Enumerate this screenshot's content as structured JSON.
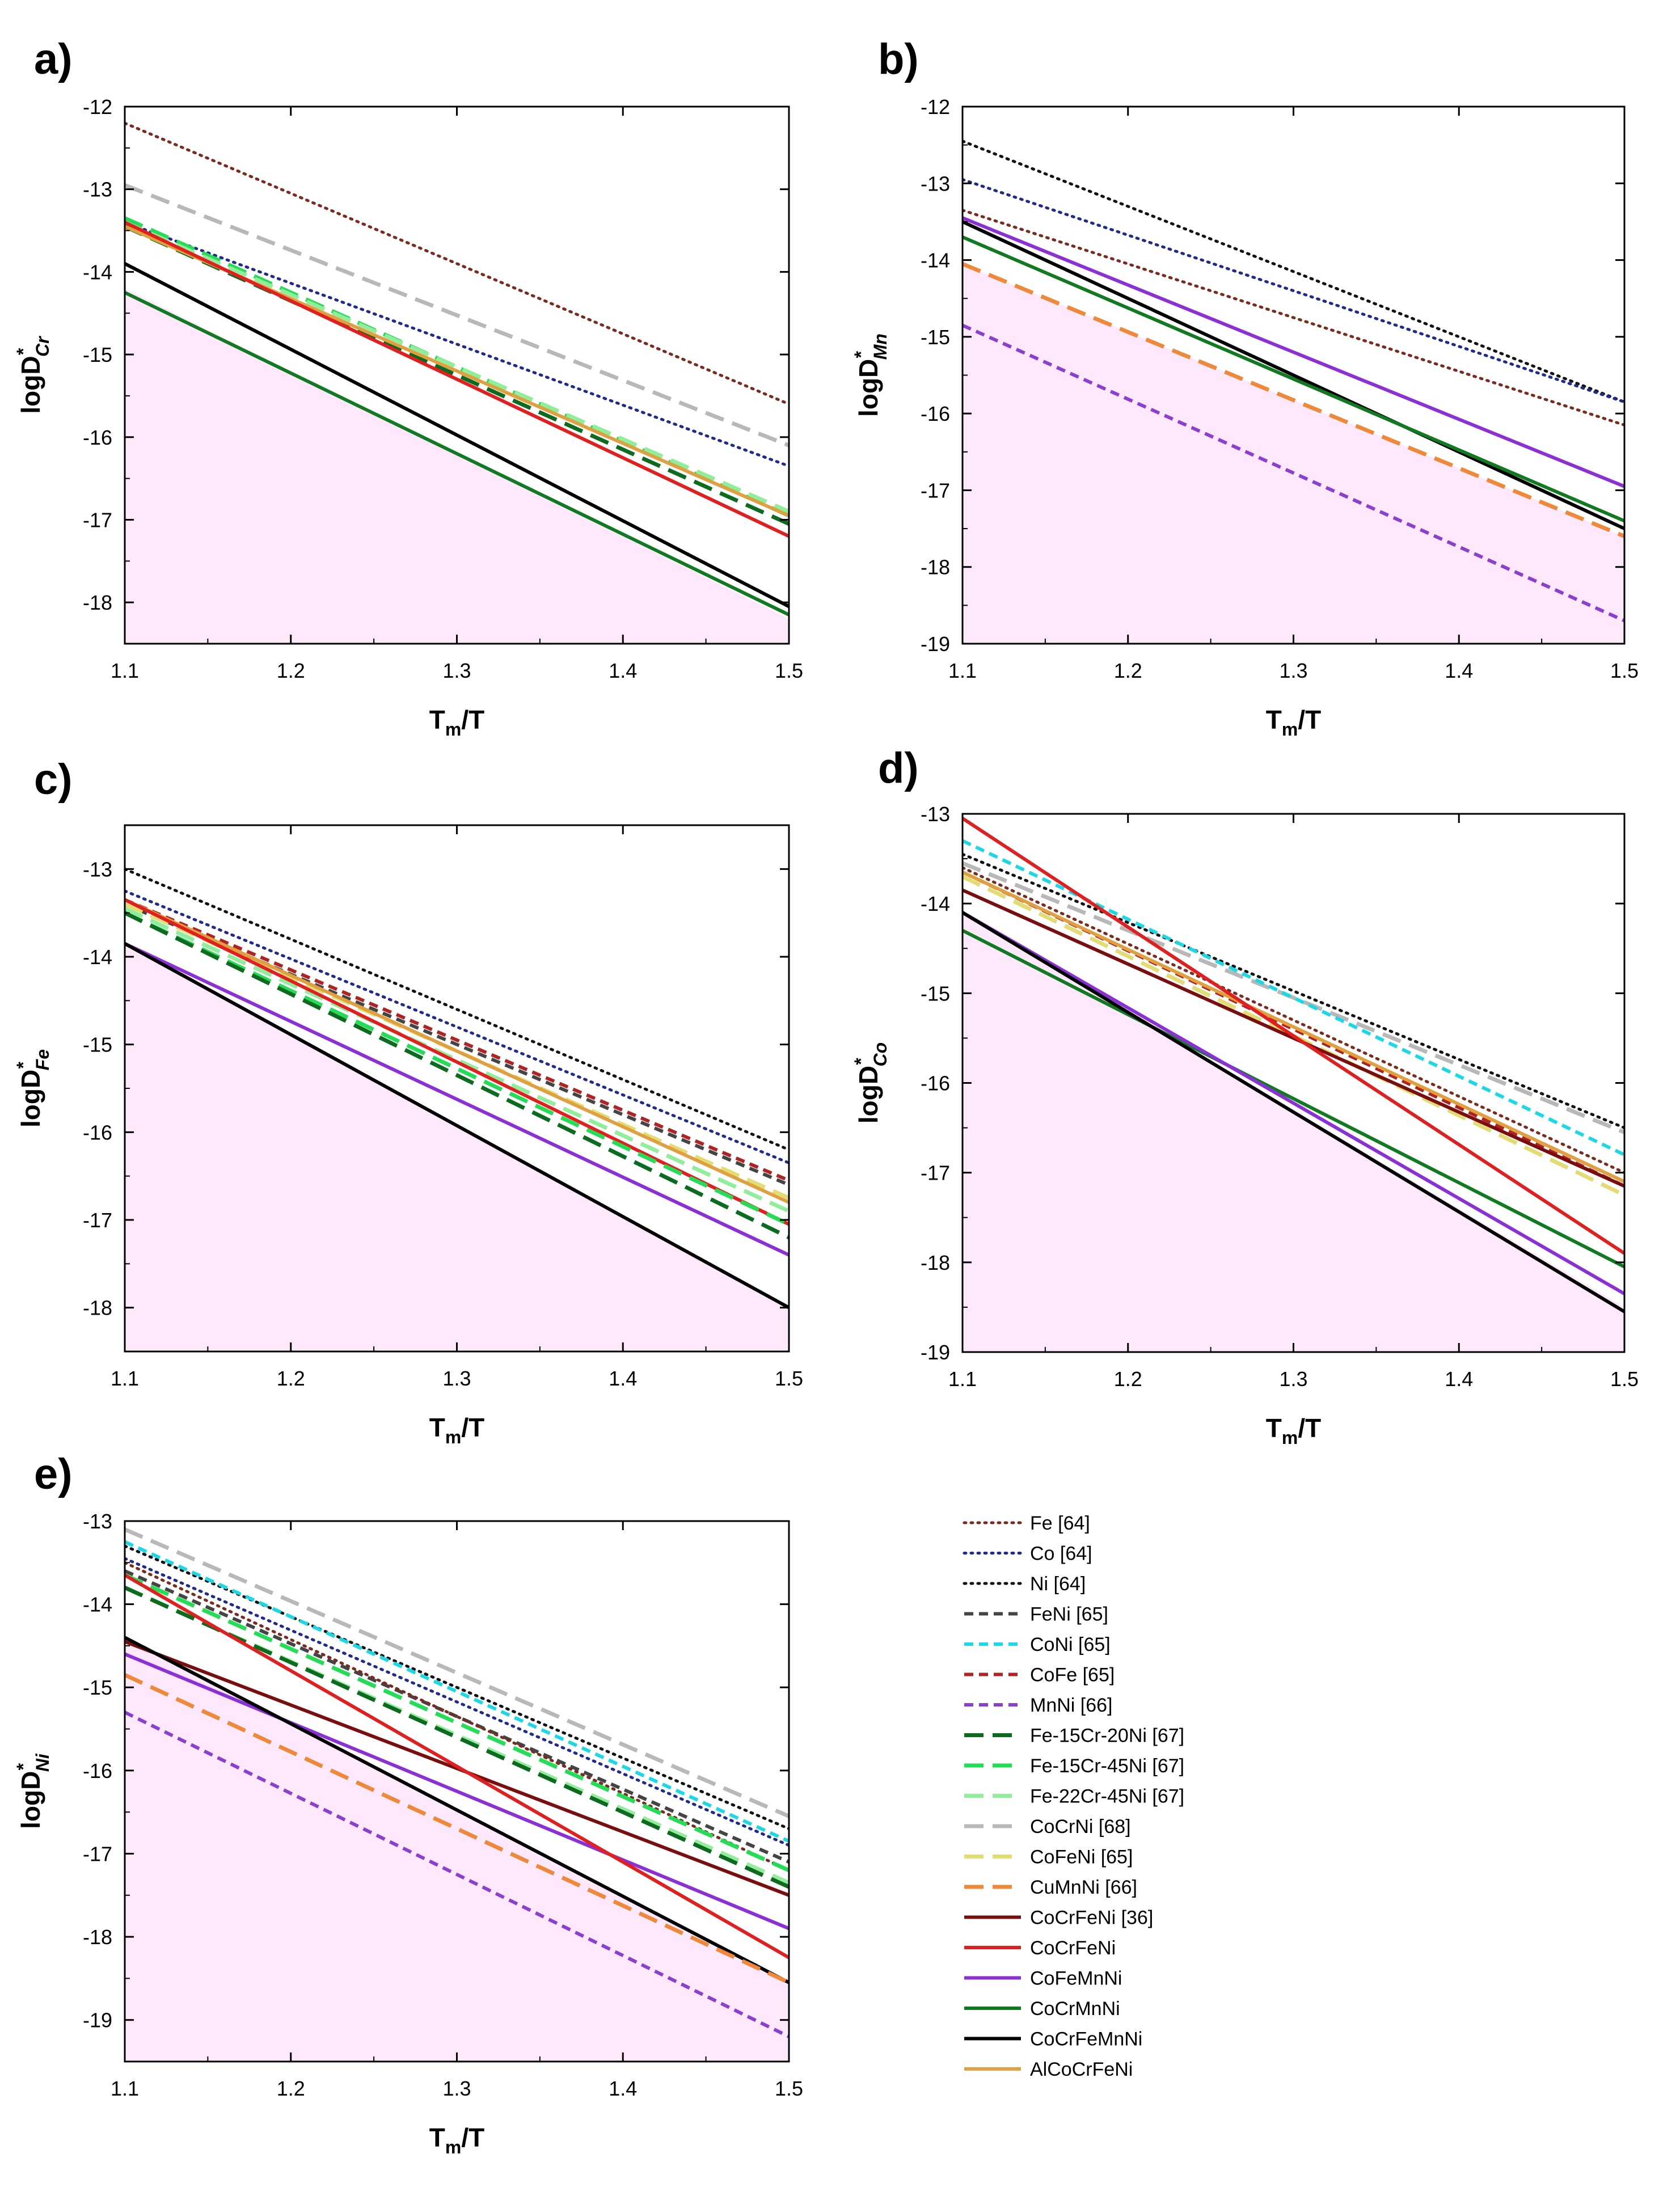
{
  "styles": {
    "Fe [64]": {
      "color": "#7b2b1e",
      "dash": "dot"
    },
    "Co [64]": {
      "color": "#1f2a8c",
      "dash": "dot"
    },
    "Ni [64]": {
      "color": "#111111",
      "dash": "dot"
    },
    "FeNi [65]": {
      "color": "#444444",
      "dash": "dash"
    },
    "CoNi [65]": {
      "color": "#1ad9e6",
      "dash": "dash"
    },
    "CoFe [65]": {
      "color": "#b22222",
      "dash": "dash"
    },
    "MnNi [66]": {
      "color": "#8a3fd0",
      "dash": "dash"
    },
    "Fe-15Cr-20Ni [67]": {
      "color": "#0b6b1e",
      "dash": "longdash"
    },
    "Fe-15Cr-45Ni [67]": {
      "color": "#22dd55",
      "dash": "longdash"
    },
    "Fe-22Cr-45Ni [67]": {
      "color": "#90ee9a",
      "dash": "longdash"
    },
    "CoCrNi [68]": {
      "color": "#b8b8b8",
      "dash": "longdash"
    },
    "CoFeNi [65]": {
      "color": "#e3dc72",
      "dash": "longdash"
    },
    "CuMnNi [66]": {
      "color": "#f0883a",
      "dash": "longdash"
    },
    "CoCrFeNi [36]": {
      "color": "#7a0e0e",
      "dash": "solid"
    },
    "CoCrFeNi": {
      "color": "#e21f1f",
      "dash": "solid"
    },
    "CoFeMnNi": {
      "color": "#8b2fd6",
      "dash": "solid"
    },
    "CoCrMnNi": {
      "color": "#0f7a1f",
      "dash": "solid"
    },
    "CoCrFeMnNi": {
      "color": "#000000",
      "dash": "solid"
    },
    "AlCoCrFeNi": {
      "color": "#e0a040",
      "dash": "solid"
    }
  },
  "shade_color": "#fde9fb",
  "legend": {
    "entries": [
      "Fe [64]",
      "Co [64]",
      "Ni [64]",
      "FeNi [65]",
      "CoNi [65]",
      "CoFe [65]",
      "MnNi [66]",
      "Fe-15Cr-20Ni [67]",
      "Fe-15Cr-45Ni [67]",
      "Fe-22Cr-45Ni [67]",
      "CoCrNi [68]",
      "CoFeNi [65]",
      "CuMnNi [66]",
      "CoCrFeNi [36]",
      "CoCrFeNi",
      "CoFeMnNi",
      "CoCrMnNi",
      "CoCrFeMnNi",
      "AlCoCrFeNi"
    ]
  },
  "chart_data": [
    {
      "panel_label": "a)",
      "type": "line",
      "xlabel": {
        "main": "T",
        "sub": "m",
        "rest": "/T"
      },
      "ylabel": {
        "main": "logD",
        "sup": "*",
        "sub": "Cr"
      },
      "xlim": [
        1.1,
        1.5
      ],
      "ylim": [
        -18.5,
        -12
      ],
      "xticks": [
        "1.1",
        "1.2",
        "1.3",
        "1.4",
        "1.5"
      ],
      "yticks": [
        "-18",
        "-17",
        "-16",
        "-15",
        "-14",
        "-13",
        "-12"
      ],
      "shaded_region": {
        "x": [
          1.1,
          1.5
        ],
        "y_top": [
          -14.2,
          -18.2
        ]
      },
      "series": [
        {
          "name": "Fe [64]",
          "x": [
            1.1,
            1.5
          ],
          "y": [
            -12.2,
            -15.6
          ]
        },
        {
          "name": "Co [64]",
          "x": [
            1.1,
            1.5
          ],
          "y": [
            -13.4,
            -16.35
          ]
        },
        {
          "name": "CoCrNi [68]",
          "x": [
            1.1,
            1.5
          ],
          "y": [
            -12.95,
            -16.1
          ]
        },
        {
          "name": "Fe-15Cr-45Ni [67]",
          "x": [
            1.1,
            1.5
          ],
          "y": [
            -13.35,
            -16.95
          ]
        },
        {
          "name": "Fe-22Cr-45Ni [67]",
          "x": [
            1.1,
            1.5
          ],
          "y": [
            -13.4,
            -16.9
          ]
        },
        {
          "name": "Fe-15Cr-20Ni [67]",
          "x": [
            1.1,
            1.5
          ],
          "y": [
            -13.45,
            -17.05
          ]
        },
        {
          "name": "AlCoCrFeNi",
          "x": [
            1.1,
            1.5
          ],
          "y": [
            -13.45,
            -16.95
          ]
        },
        {
          "name": "CoCrFeNi",
          "x": [
            1.1,
            1.5
          ],
          "y": [
            -13.4,
            -17.2
          ]
        },
        {
          "name": "CoCrFeMnNi",
          "x": [
            1.1,
            1.5
          ],
          "y": [
            -13.9,
            -18.05
          ]
        },
        {
          "name": "CoCrMnNi",
          "x": [
            1.1,
            1.5
          ],
          "y": [
            -14.25,
            -18.15
          ]
        }
      ]
    },
    {
      "panel_label": "b)",
      "type": "line",
      "xlabel": {
        "main": "T",
        "sub": "m",
        "rest": "/T"
      },
      "ylabel": {
        "main": "logD",
        "sup": "*",
        "sub": "Mn"
      },
      "xlim": [
        1.1,
        1.5
      ],
      "ylim": [
        -19,
        -12
      ],
      "xticks": [
        "1.1",
        "1.2",
        "1.3",
        "1.4",
        "1.5"
      ],
      "yticks": [
        "-19",
        "-18",
        "-17",
        "-16",
        "-15",
        "-14",
        "-13",
        "-12"
      ],
      "shaded_region": {
        "x": [
          1.1,
          1.5
        ],
        "y_top": [
          -14.05,
          -17.6
        ]
      },
      "series": [
        {
          "name": "Ni [64]",
          "x": [
            1.1,
            1.5
          ],
          "y": [
            -12.45,
            -15.85
          ]
        },
        {
          "name": "Co [64]",
          "x": [
            1.1,
            1.5
          ],
          "y": [
            -12.95,
            -15.85
          ]
        },
        {
          "name": "Fe [64]",
          "x": [
            1.1,
            1.5
          ],
          "y": [
            -13.35,
            -16.15
          ]
        },
        {
          "name": "CoFeMnNi",
          "x": [
            1.1,
            1.5
          ],
          "y": [
            -13.45,
            -16.95
          ]
        },
        {
          "name": "CoCrFeMnNi",
          "x": [
            1.1,
            1.5
          ],
          "y": [
            -13.5,
            -17.5
          ]
        },
        {
          "name": "CoCrMnNi",
          "x": [
            1.1,
            1.5
          ],
          "y": [
            -13.7,
            -17.4
          ]
        },
        {
          "name": "CuMnNi [66]",
          "x": [
            1.1,
            1.5
          ],
          "y": [
            -14.05,
            -17.6
          ]
        },
        {
          "name": "MnNi [66]",
          "x": [
            1.1,
            1.5
          ],
          "y": [
            -14.85,
            -18.7
          ]
        }
      ]
    },
    {
      "panel_label": "c)",
      "type": "line",
      "xlabel": {
        "main": "T",
        "sub": "m",
        "rest": "/T"
      },
      "ylabel": {
        "main": "logD",
        "sup": "*",
        "sub": "Fe"
      },
      "xlim": [
        1.1,
        1.5
      ],
      "ylim": [
        -18.5,
        -12.5
      ],
      "xticks": [
        "1.1",
        "1.2",
        "1.3",
        "1.4",
        "1.5"
      ],
      "yticks": [
        "-18",
        "-17",
        "-16",
        "-15",
        "-14",
        "-13"
      ],
      "shaded_region": {
        "x": [
          1.1,
          1.5
        ],
        "y_top": [
          -13.85,
          -18.0
        ]
      },
      "series": [
        {
          "name": "Ni [64]",
          "x": [
            1.1,
            1.5
          ],
          "y": [
            -13.0,
            -16.2
          ]
        },
        {
          "name": "Co [64]",
          "x": [
            1.1,
            1.5
          ],
          "y": [
            -13.25,
            -16.35
          ]
        },
        {
          "name": "CoFe [65]",
          "x": [
            1.1,
            1.5
          ],
          "y": [
            -13.35,
            -16.55
          ]
        },
        {
          "name": "FeNi [65]",
          "x": [
            1.1,
            1.5
          ],
          "y": [
            -13.4,
            -16.6
          ]
        },
        {
          "name": "CoFeNi [65]",
          "x": [
            1.1,
            1.5
          ],
          "y": [
            -13.4,
            -16.75
          ]
        },
        {
          "name": "AlCoCrFeNi",
          "x": [
            1.1,
            1.5
          ],
          "y": [
            -13.35,
            -16.8
          ]
        },
        {
          "name": "Fe-22Cr-45Ni [67]",
          "x": [
            1.1,
            1.5
          ],
          "y": [
            -13.45,
            -16.9
          ]
        },
        {
          "name": "CoCrFeNi",
          "x": [
            1.1,
            1.5
          ],
          "y": [
            -13.35,
            -17.05
          ]
        },
        {
          "name": "Fe-15Cr-45Ni [67]",
          "x": [
            1.1,
            1.5
          ],
          "y": [
            -13.5,
            -17.05
          ]
        },
        {
          "name": "Fe-15Cr-20Ni [67]",
          "x": [
            1.1,
            1.5
          ],
          "y": [
            -13.5,
            -17.2
          ]
        },
        {
          "name": "CoFeMnNi",
          "x": [
            1.1,
            1.5
          ],
          "y": [
            -13.85,
            -17.4
          ]
        },
        {
          "name": "CoCrFeMnNi",
          "x": [
            1.1,
            1.5
          ],
          "y": [
            -13.85,
            -18.0
          ]
        }
      ]
    },
    {
      "panel_label": "d)",
      "type": "line",
      "xlabel": {
        "main": "T",
        "sub": "m",
        "rest": "/T"
      },
      "ylabel": {
        "main": "logD",
        "sup": "*",
        "sub": "Co"
      },
      "xlim": [
        1.1,
        1.5
      ],
      "ylim": [
        -19,
        -13
      ],
      "xticks": [
        "1.1",
        "1.2",
        "1.3",
        "1.4",
        "1.5"
      ],
      "yticks": [
        "-19",
        "-18",
        "-17",
        "-16",
        "-15",
        "-14",
        "-13"
      ],
      "shaded_region": {
        "x": [
          1.1,
          1.5
        ],
        "y_top": [
          -14.1,
          -18.5
        ]
      },
      "series": [
        {
          "name": "Ni [64]",
          "x": [
            1.1,
            1.5
          ],
          "y": [
            -13.45,
            -16.5
          ]
        },
        {
          "name": "CoCrNi [68]",
          "x": [
            1.1,
            1.5
          ],
          "y": [
            -13.55,
            -16.55
          ]
        },
        {
          "name": "CoNi [65]",
          "x": [
            1.1,
            1.5
          ],
          "y": [
            -13.3,
            -16.8
          ]
        },
        {
          "name": "Fe [64]",
          "x": [
            1.1,
            1.5
          ],
          "y": [
            -13.6,
            -17.0
          ]
        },
        {
          "name": "CoFe [65]",
          "x": [
            1.1,
            1.5
          ],
          "y": [
            -13.65,
            -17.15
          ]
        },
        {
          "name": "AlCoCrFeNi",
          "x": [
            1.1,
            1.5
          ],
          "y": [
            -13.65,
            -17.1
          ]
        },
        {
          "name": "CoFeNi [65]",
          "x": [
            1.1,
            1.5
          ],
          "y": [
            -13.7,
            -17.25
          ]
        },
        {
          "name": "CoCrFeNi [36]",
          "x": [
            1.1,
            1.5
          ],
          "y": [
            -13.85,
            -17.15
          ]
        },
        {
          "name": "CoCrFeNi",
          "x": [
            1.1,
            1.5
          ],
          "y": [
            -13.05,
            -17.9
          ]
        },
        {
          "name": "CoCrMnNi",
          "x": [
            1.1,
            1.5
          ],
          "y": [
            -14.3,
            -18.05
          ]
        },
        {
          "name": "CoFeMnNi",
          "x": [
            1.1,
            1.5
          ],
          "y": [
            -14.1,
            -18.35
          ]
        },
        {
          "name": "CoCrFeMnNi",
          "x": [
            1.1,
            1.5
          ],
          "y": [
            -14.1,
            -18.55
          ]
        }
      ]
    },
    {
      "panel_label": "e)",
      "type": "line",
      "xlabel": {
        "main": "T",
        "sub": "m",
        "rest": "/T"
      },
      "ylabel": {
        "main": "logD",
        "sup": "*",
        "sub": "Ni"
      },
      "xlim": [
        1.1,
        1.5
      ],
      "ylim": [
        -19.5,
        -13
      ],
      "xticks": [
        "1.1",
        "1.2",
        "1.3",
        "1.4",
        "1.5"
      ],
      "yticks": [
        "-19",
        "-18",
        "-17",
        "-16",
        "-15",
        "-14",
        "-13"
      ],
      "shaded_region": {
        "x": [
          1.1,
          1.5
        ],
        "y_top": [
          -14.4,
          -18.55
        ]
      },
      "series": [
        {
          "name": "CoCrNi [68]",
          "x": [
            1.1,
            1.5
          ],
          "y": [
            -13.1,
            -16.55
          ]
        },
        {
          "name": "Ni [64]",
          "x": [
            1.1,
            1.5
          ],
          "y": [
            -13.3,
            -16.7
          ]
        },
        {
          "name": "CoNi [65]",
          "x": [
            1.1,
            1.5
          ],
          "y": [
            -13.25,
            -16.85
          ]
        },
        {
          "name": "Co [64]",
          "x": [
            1.1,
            1.5
          ],
          "y": [
            -13.45,
            -16.9
          ]
        },
        {
          "name": "FeNi [65]",
          "x": [
            1.1,
            1.5
          ],
          "y": [
            -13.6,
            -17.1
          ]
        },
        {
          "name": "Fe [64]",
          "x": [
            1.1,
            1.5
          ],
          "y": [
            -13.5,
            -17.2
          ]
        },
        {
          "name": "Fe-15Cr-45Ni [67]",
          "x": [
            1.1,
            1.5
          ],
          "y": [
            -13.65,
            -17.2
          ]
        },
        {
          "name": "Fe-22Cr-45Ni [67]",
          "x": [
            1.1,
            1.5
          ],
          "y": [
            -13.8,
            -17.35
          ]
        },
        {
          "name": "Fe-15Cr-20Ni [67]",
          "x": [
            1.1,
            1.5
          ],
          "y": [
            -13.8,
            -17.4
          ]
        },
        {
          "name": "CoCrFeNi [36]",
          "x": [
            1.1,
            1.5
          ],
          "y": [
            -14.45,
            -17.5
          ]
        },
        {
          "name": "CoFeMnNi",
          "x": [
            1.1,
            1.5
          ],
          "y": [
            -14.6,
            -17.9
          ]
        },
        {
          "name": "CoCrFeNi",
          "x": [
            1.1,
            1.5
          ],
          "y": [
            -13.65,
            -18.25
          ]
        },
        {
          "name": "CoCrFeMnNi",
          "x": [
            1.1,
            1.5
          ],
          "y": [
            -14.4,
            -18.55
          ]
        },
        {
          "name": "CuMnNi [66]",
          "x": [
            1.1,
            1.5
          ],
          "y": [
            -14.85,
            -18.55
          ]
        },
        {
          "name": "MnNi [66]",
          "x": [
            1.1,
            1.5
          ],
          "y": [
            -15.3,
            -19.2
          ]
        }
      ]
    }
  ]
}
